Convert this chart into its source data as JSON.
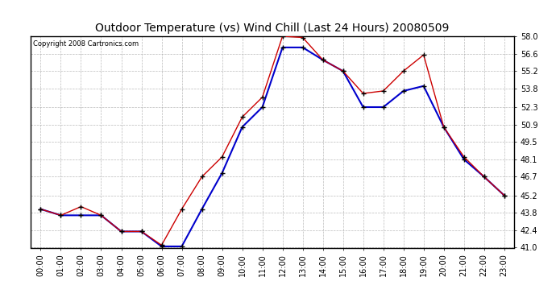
{
  "title": "Outdoor Temperature (vs) Wind Chill (Last 24 Hours) 20080509",
  "copyright": "Copyright 2008 Cartronics.com",
  "x_labels": [
    "00:00",
    "01:00",
    "02:00",
    "03:00",
    "04:00",
    "05:00",
    "06:00",
    "07:00",
    "08:00",
    "09:00",
    "10:00",
    "11:00",
    "12:00",
    "13:00",
    "14:00",
    "15:00",
    "16:00",
    "17:00",
    "18:00",
    "19:00",
    "20:00",
    "21:00",
    "22:00",
    "23:00"
  ],
  "temp": [
    44.1,
    43.6,
    44.3,
    43.6,
    42.3,
    42.3,
    41.2,
    44.1,
    46.7,
    48.3,
    51.5,
    53.1,
    58.0,
    57.9,
    56.1,
    55.2,
    53.4,
    53.6,
    55.2,
    56.5,
    50.7,
    48.3,
    46.7,
    45.2
  ],
  "wind_chill": [
    44.1,
    43.6,
    43.6,
    43.6,
    42.3,
    42.3,
    41.1,
    41.1,
    44.1,
    47.0,
    50.7,
    52.3,
    57.1,
    57.1,
    56.1,
    55.2,
    52.3,
    52.3,
    53.6,
    54.0,
    50.7,
    48.1,
    46.7,
    45.2
  ],
  "ylim": [
    41.0,
    58.0
  ],
  "yticks": [
    41.0,
    42.4,
    43.8,
    45.2,
    46.7,
    48.1,
    49.5,
    50.9,
    52.3,
    53.8,
    55.2,
    56.6,
    58.0
  ],
  "temp_color": "#cc0000",
  "wind_chill_color": "#0000cc",
  "bg_color": "#ffffff",
  "plot_bg_color": "#ffffff",
  "grid_color": "#aaaaaa",
  "title_fontsize": 10,
  "copyright_fontsize": 6,
  "tick_fontsize": 7,
  "marker_color": "#000000"
}
